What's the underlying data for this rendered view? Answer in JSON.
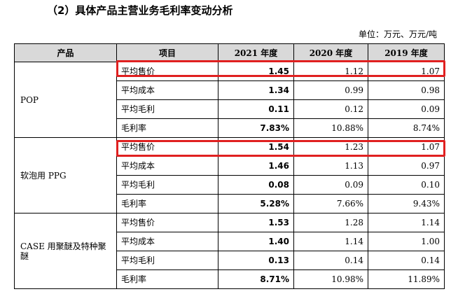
{
  "title": "（2）具体产品主营业务毛利率变动分析",
  "unit": "单位：万元、万元/吨",
  "table": {
    "headers": [
      "产品",
      "项目",
      "2021 年度",
      "2020 年度",
      "2019 年度"
    ],
    "groups": [
      {
        "product": "POP",
        "rows": [
          {
            "item": "平均售价",
            "y2021": "1.45",
            "y2020": "1.12",
            "y2019": "1.07"
          },
          {
            "item": "平均成本",
            "y2021": "1.34",
            "y2020": "0.99",
            "y2019": "0.98"
          },
          {
            "item": "平均毛利",
            "y2021": "0.11",
            "y2020": "0.12",
            "y2019": "0.09"
          },
          {
            "item": "毛利率",
            "y2021": "7.83%",
            "y2020": "10.88%",
            "y2019": "8.74%"
          }
        ]
      },
      {
        "product": "软泡用 PPG",
        "rows": [
          {
            "item": "平均售价",
            "y2021": "1.54",
            "y2020": "1.23",
            "y2019": "1.07"
          },
          {
            "item": "平均成本",
            "y2021": "1.46",
            "y2020": "1.13",
            "y2019": "0.97"
          },
          {
            "item": "平均毛利",
            "y2021": "0.08",
            "y2020": "0.09",
            "y2019": "0.10"
          },
          {
            "item": "毛利率",
            "y2021": "5.28%",
            "y2020": "7.66%",
            "y2019": "9.43%"
          }
        ]
      },
      {
        "product": "CASE 用聚醚及特种聚醚",
        "rows": [
          {
            "item": "平均售价",
            "y2021": "1.53",
            "y2020": "1.28",
            "y2019": "1.14"
          },
          {
            "item": "平均成本",
            "y2021": "1.40",
            "y2020": "1.14",
            "y2019": "1.00"
          },
          {
            "item": "平均毛利",
            "y2021": "0.13",
            "y2020": "0.14",
            "y2019": "0.14"
          },
          {
            "item": "毛利率",
            "y2021": "8.71%",
            "y2020": "10.98%",
            "y2019": "11.89%"
          }
        ]
      }
    ]
  },
  "highlight_color": "#e02020"
}
